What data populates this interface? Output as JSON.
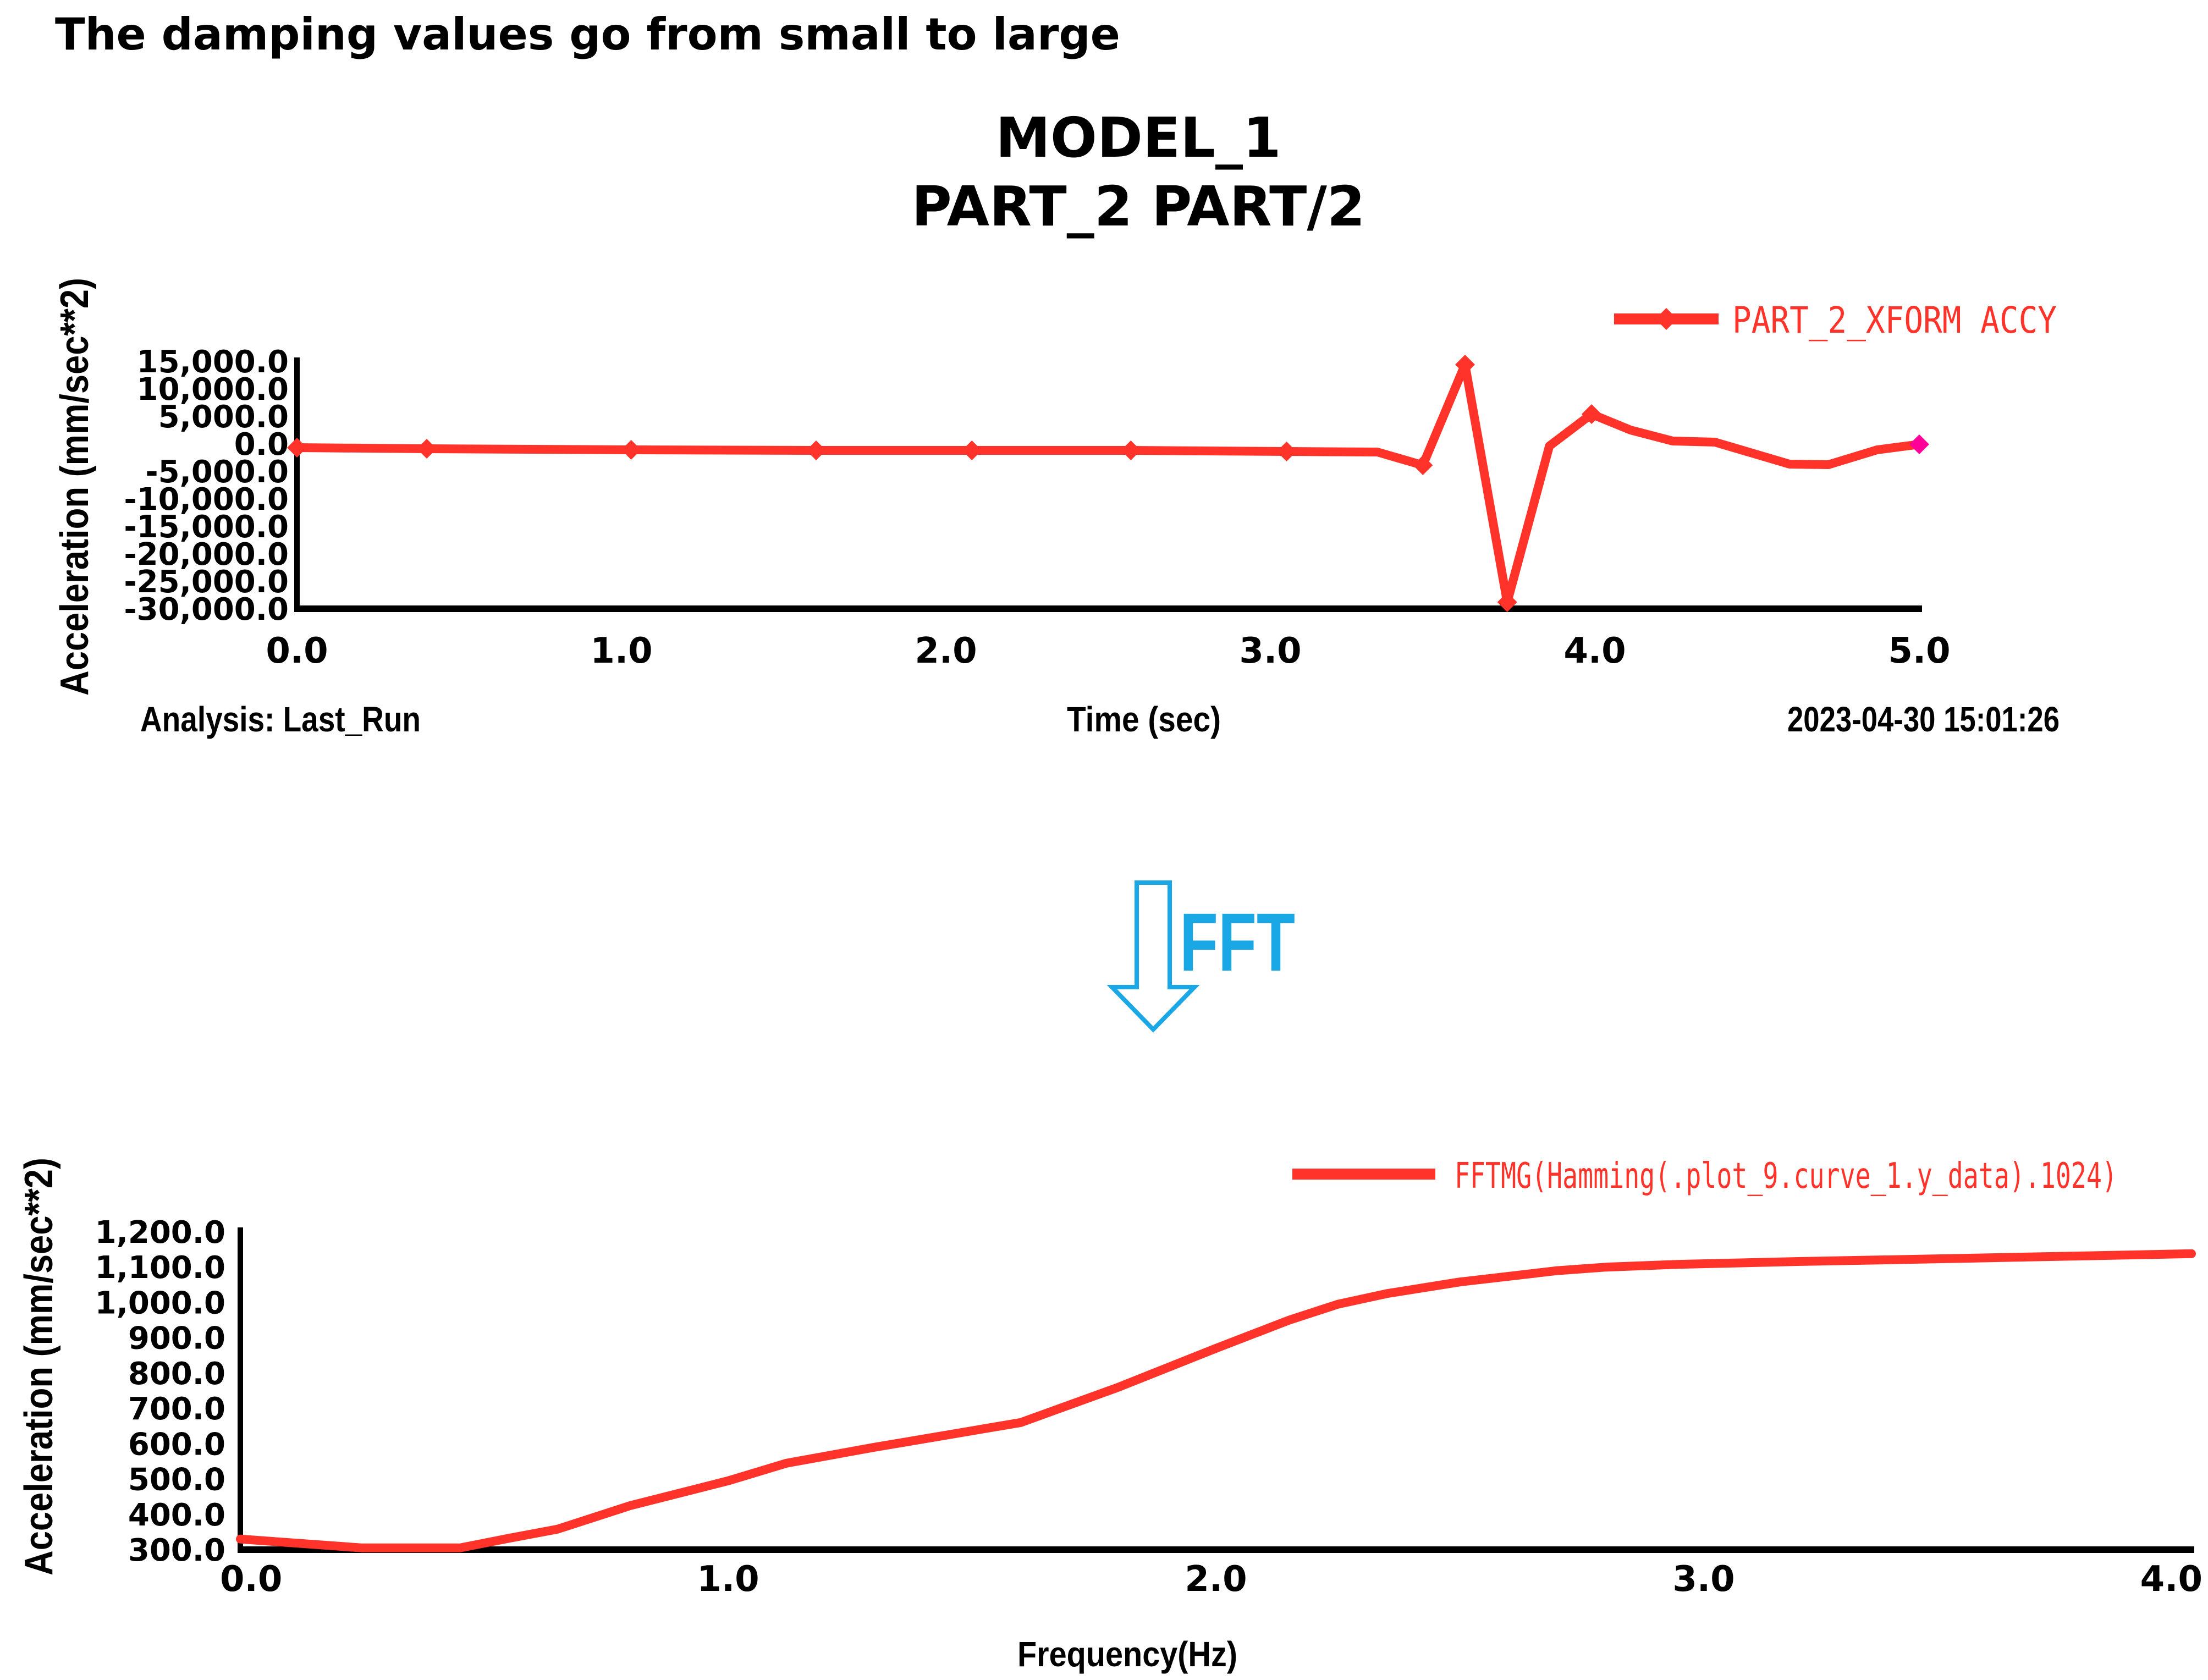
{
  "header": {
    "caption": "The damping values go from small to large"
  },
  "colors": {
    "curve": "#ff3329",
    "axis": "#000000",
    "last_marker": "#ff0099",
    "fft_label": "#1aa7e6",
    "arrow_outline": "#1aa7e6"
  },
  "fft_label": "FFT",
  "chart_data": [
    {
      "type": "line",
      "title": "MODEL_1",
      "subtitle": "PART_2 PART/2",
      "xlabel": "Time (sec)",
      "ylabel": "Acceleration (mm/sec**2)",
      "xlim": [
        0.0,
        5.0
      ],
      "ylim": [
        -30000.0,
        15000.0
      ],
      "x_ticks": [
        0.0,
        1.0,
        2.0,
        3.0,
        4.0,
        5.0
      ],
      "x_tick_labels": [
        "0.0",
        "1.0",
        "2.0",
        "3.0",
        "4.0",
        "5.0"
      ],
      "y_ticks": [
        15000,
        10000,
        5000,
        0,
        -5000,
        -10000,
        -15000,
        -20000,
        -25000,
        -30000
      ],
      "y_tick_labels": [
        "15,000.0",
        "10,000.0",
        "5,000.0",
        "0.0",
        "-5,000.0",
        "-10,000.0",
        "-15,000.0",
        "-20,000.0",
        "-25,000.0",
        "-30,000.0"
      ],
      "analysis_label": "Analysis: Last_Run",
      "timestamp": "2023-04-30 15:01:26",
      "legend_position": "top-right",
      "series": [
        {
          "name": "PART_2_XFORM ACCY",
          "marker": "diamond",
          "x": [
            0.0,
            0.4,
            1.03,
            1.6,
            2.08,
            2.57,
            3.05,
            3.33,
            3.47,
            3.6,
            3.73,
            3.86,
            3.99,
            4.11,
            4.24,
            4.37,
            4.6,
            4.72,
            4.87,
            5.0
          ],
          "y": [
            -700,
            -900,
            -1100,
            -1200,
            -1200,
            -1200,
            -1400,
            -1500,
            -3900,
            14400,
            -28800,
            -400,
            5400,
            2500,
            500,
            300,
            -3700,
            -3800,
            -1100,
            -100
          ],
          "marked": [
            true,
            true,
            true,
            true,
            true,
            true,
            true,
            false,
            true,
            true,
            true,
            false,
            true,
            false,
            false,
            false,
            false,
            false,
            false,
            true
          ]
        }
      ]
    },
    {
      "type": "line",
      "xlabel": "Frequency(Hz)",
      "ylabel": "Acceleration (mm/sec**2)",
      "xlim": [
        0.0,
        4.0
      ],
      "ylim": [
        300.0,
        1200.0
      ],
      "x_ticks": [
        0.0,
        1.0,
        2.0,
        3.0,
        4.0
      ],
      "x_tick_labels": [
        "0.0",
        "1.0",
        "2.0",
        "3.0",
        "4.0"
      ],
      "y_ticks": [
        1200,
        1100,
        1000,
        900,
        800,
        700,
        600,
        500,
        400,
        300
      ],
      "y_tick_labels": [
        "1,200.0",
        "1,100.0",
        "1,000.0",
        "900.0",
        "800.0",
        "700.0",
        "600.0",
        "500.0",
        "400.0",
        "300.0"
      ],
      "legend_position": "top-right",
      "series": [
        {
          "name": "FFTMG(Hamming(.plot_9.curve_1.y_data).1024)",
          "x": [
            0.0,
            0.1,
            0.25,
            0.45,
            0.55,
            0.65,
            0.8,
            1.0,
            1.12,
            1.3,
            1.6,
            1.8,
            2.0,
            2.15,
            2.25,
            2.35,
            2.5,
            2.7,
            2.8,
            2.95,
            3.2,
            3.5,
            4.0
          ],
          "y": [
            330,
            320,
            305,
            305,
            332,
            358,
            425,
            495,
            545,
            590,
            660,
            760,
            870,
            950,
            995,
            1025,
            1058,
            1090,
            1100,
            1108,
            1116,
            1124,
            1138
          ]
        }
      ]
    }
  ]
}
